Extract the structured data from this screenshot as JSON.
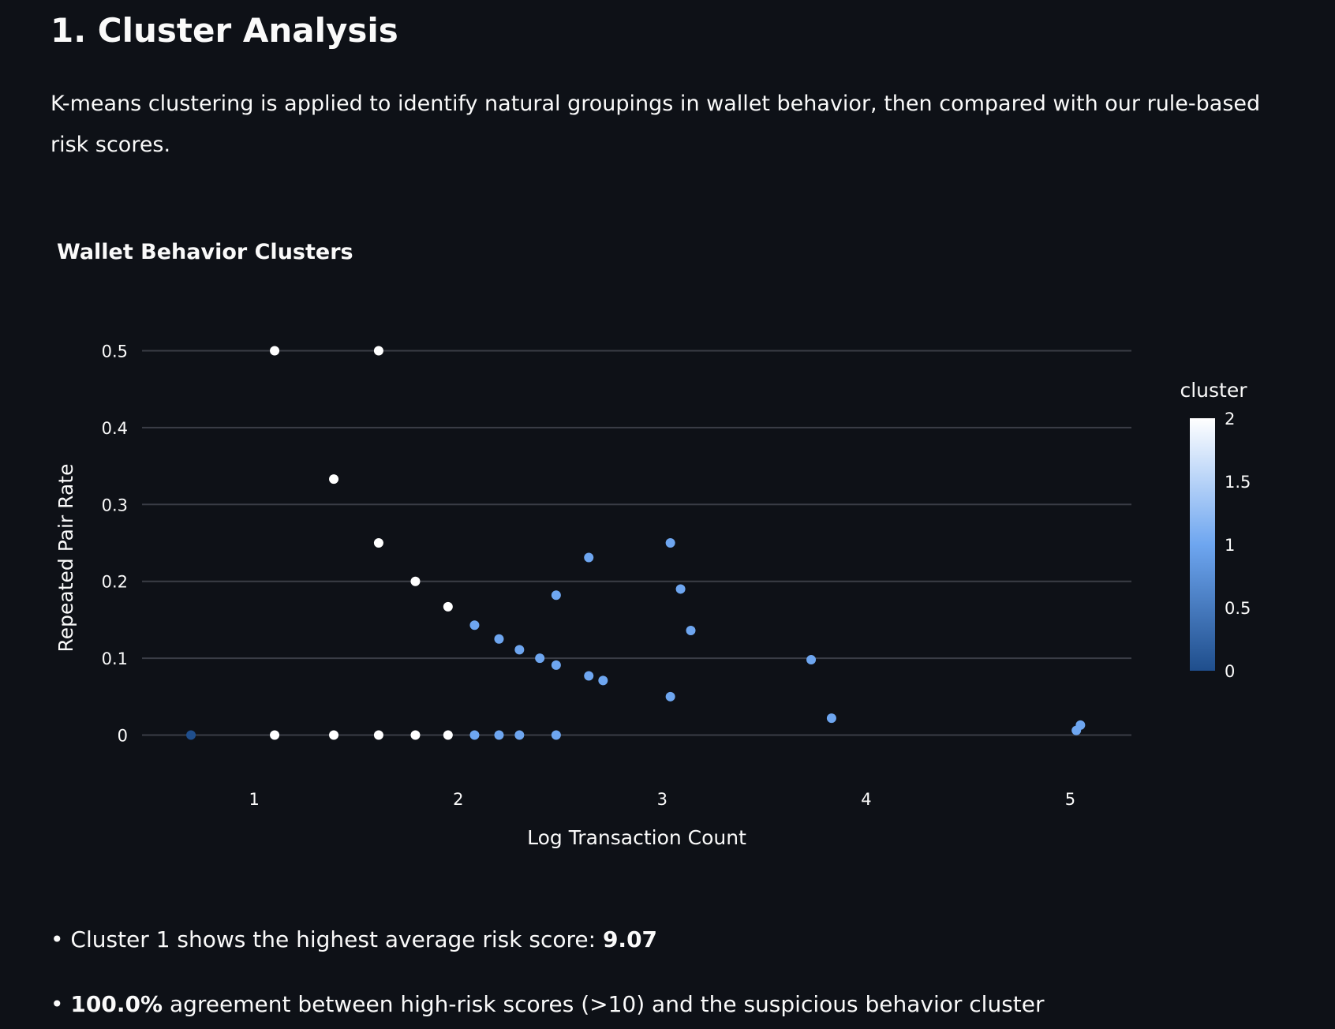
{
  "page": {
    "title": "1. Cluster Analysis",
    "intro": "K-means clustering is applied to identify natural groupings in wallet behavior, then compared with our rule-based risk scores."
  },
  "bullets": [
    {
      "prefix": "• Cluster 1 shows the highest average risk score: ",
      "highlight": "9.07",
      "suffix": ""
    },
    {
      "prefix": "• ",
      "highlight": "100.0%",
      "suffix": " agreement between high-risk scores (>10) and the suspicious behavior cluster"
    }
  ],
  "colors": {
    "background": "#0e1117",
    "grid": "#3a3d46",
    "text": "#fafafa",
    "cluster_0": "#1f4e8c",
    "cluster_1": "#6ea6f0",
    "cluster_2": "#ffffff"
  },
  "chart_data": {
    "type": "scatter",
    "title": "Wallet Behavior Clusters",
    "xlabel": "Log Transaction Count",
    "ylabel": "Repeated Pair Rate",
    "xlim": [
      0.45,
      5.3
    ],
    "ylim": [
      -0.02,
      0.52
    ],
    "xticks": [
      1,
      2,
      3,
      4,
      5
    ],
    "yticks": [
      0,
      0.1,
      0.2,
      0.3,
      0.4,
      0.5
    ],
    "ytick_labels": [
      "0",
      "0.1",
      "0.2",
      "0.3",
      "0.4",
      "0.5"
    ],
    "grid": true,
    "colorbar": {
      "title": "cluster",
      "ticks": [
        0,
        0.5,
        1,
        1.5,
        2
      ],
      "tick_labels": [
        "0",
        "0.5",
        "1",
        "1.5",
        "2"
      ],
      "placement": "right"
    },
    "points": [
      {
        "x": 0.69,
        "y": 0.0,
        "cluster": 0
      },
      {
        "x": 1.1,
        "y": 0.5,
        "cluster": 2
      },
      {
        "x": 1.61,
        "y": 0.5,
        "cluster": 2
      },
      {
        "x": 1.39,
        "y": 0.333,
        "cluster": 2
      },
      {
        "x": 1.61,
        "y": 0.25,
        "cluster": 2
      },
      {
        "x": 1.79,
        "y": 0.2,
        "cluster": 2
      },
      {
        "x": 1.95,
        "y": 0.167,
        "cluster": 2
      },
      {
        "x": 1.1,
        "y": 0.0,
        "cluster": 2
      },
      {
        "x": 1.39,
        "y": 0.0,
        "cluster": 2
      },
      {
        "x": 1.61,
        "y": 0.0,
        "cluster": 2
      },
      {
        "x": 1.79,
        "y": 0.0,
        "cluster": 2
      },
      {
        "x": 1.95,
        "y": 0.0,
        "cluster": 2
      },
      {
        "x": 2.08,
        "y": 0.143,
        "cluster": 1
      },
      {
        "x": 2.2,
        "y": 0.125,
        "cluster": 1
      },
      {
        "x": 2.3,
        "y": 0.111,
        "cluster": 1
      },
      {
        "x": 2.4,
        "y": 0.1,
        "cluster": 1
      },
      {
        "x": 2.48,
        "y": 0.091,
        "cluster": 1
      },
      {
        "x": 2.48,
        "y": 0.182,
        "cluster": 1
      },
      {
        "x": 2.64,
        "y": 0.231,
        "cluster": 1
      },
      {
        "x": 2.64,
        "y": 0.077,
        "cluster": 1
      },
      {
        "x": 2.71,
        "y": 0.071,
        "cluster": 1
      },
      {
        "x": 3.04,
        "y": 0.25,
        "cluster": 1
      },
      {
        "x": 3.09,
        "y": 0.19,
        "cluster": 1
      },
      {
        "x": 3.14,
        "y": 0.136,
        "cluster": 1
      },
      {
        "x": 3.04,
        "y": 0.05,
        "cluster": 1
      },
      {
        "x": 3.73,
        "y": 0.098,
        "cluster": 1
      },
      {
        "x": 3.83,
        "y": 0.022,
        "cluster": 1
      },
      {
        "x": 5.03,
        "y": 0.006,
        "cluster": 1
      },
      {
        "x": 5.05,
        "y": 0.013,
        "cluster": 1
      },
      {
        "x": 2.08,
        "y": 0.0,
        "cluster": 1
      },
      {
        "x": 2.2,
        "y": 0.0,
        "cluster": 1
      },
      {
        "x": 2.3,
        "y": 0.0,
        "cluster": 1
      },
      {
        "x": 2.48,
        "y": 0.0,
        "cluster": 1
      }
    ]
  }
}
